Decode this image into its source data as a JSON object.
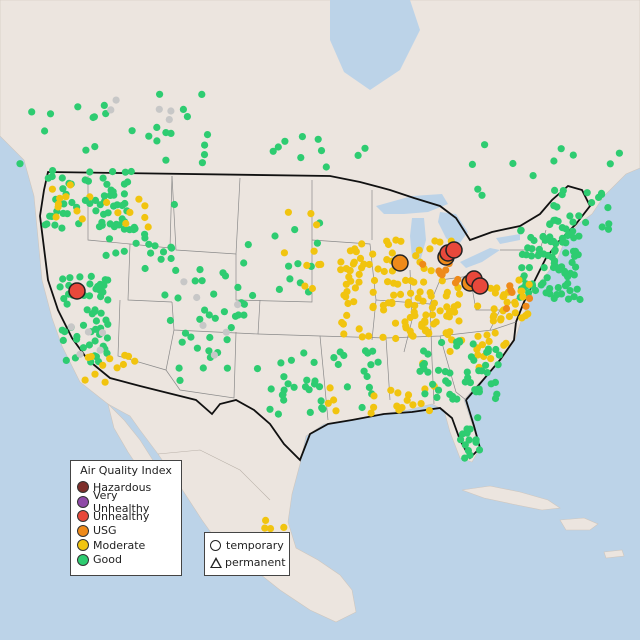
{
  "legend": {
    "title": "Air Quality Index",
    "categories": [
      {
        "label": "Hazardous",
        "color": "#7e2e2a"
      },
      {
        "label": "Very Unhealthy",
        "color": "#8f4aa8"
      },
      {
        "label": "Unhealthy",
        "color": "#e8483b"
      },
      {
        "label": "USG",
        "color": "#ee8a1a"
      },
      {
        "label": "Moderate",
        "color": "#f1c40f"
      },
      {
        "label": "Good",
        "color": "#2ecc71"
      }
    ],
    "monitor_types": [
      {
        "label": "temporary",
        "icon": "circle-icon"
      },
      {
        "label": "permanent",
        "icon": "triangle-icon"
      }
    ]
  },
  "colors": {
    "ocean": "#bcd3e8",
    "land": "#ece5df",
    "land_other": "#e4ddd6",
    "inactive": "#c7c7c7"
  }
}
